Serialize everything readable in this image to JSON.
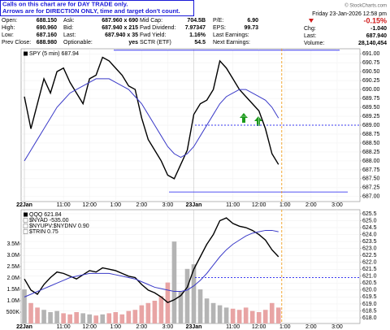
{
  "notice": [
    "Calls on this chart are for DAY TRADE only.",
    "Arrows are for DIRECTION ONLY, time and target don't count."
  ],
  "watermark": "© StockCharts.com",
  "quote": {
    "columns": [
      [
        [
          "Open:",
          "688.150"
        ],
        [
          "High:",
          "690.960"
        ],
        [
          "Low:",
          "687.160"
        ],
        [
          "Prev Close:",
          "688.980"
        ]
      ],
      [
        [
          "Ask:",
          "687.960 x 690"
        ],
        [
          "Bid:",
          "687.940 x 215"
        ],
        [
          "Last:",
          "687.940 x 35"
        ],
        [
          "Optionable:",
          "yes"
        ]
      ],
      [
        [
          "Mid Cap:",
          "704.5B"
        ],
        [
          "Fwd Dividend:",
          "7.97347"
        ],
        [
          "Fwd Yield:",
          "1.16%"
        ],
        [
          "SCTR (ETF)",
          "54.5"
        ]
      ],
      [
        [
          "P/E:",
          "6.90"
        ],
        [
          "EPS:",
          "99.73"
        ],
        [
          "Last Earnings:"
        ],
        [
          "Next Earnings:"
        ]
      ]
    ]
  },
  "status": {
    "date": "Friday  23-Jan-2026 12:58 pm",
    "change_pct": "-0.15%",
    "rows": [
      [
        "Chg:",
        "-1.040"
      ],
      [
        "Last:",
        "687.940"
      ],
      [
        "Volume:",
        "28,140,454"
      ]
    ]
  },
  "chart_data": [
    {
      "type": "line",
      "categories": [
        "22Jan",
        null,
        null,
        null,
        null,
        null,
        "11:00",
        null,
        null,
        null,
        "12:00",
        null,
        null,
        null,
        "1:00",
        null,
        null,
        null,
        "2:00",
        null,
        null,
        null,
        "3:00",
        null,
        null,
        null,
        "23Jan",
        null,
        null,
        null,
        null,
        null,
        "11:00",
        null,
        null,
        null,
        "12:00",
        null,
        null,
        null,
        "1:00",
        null,
        null,
        null,
        "2:00",
        null,
        null,
        null,
        "3:00",
        null,
        null,
        null
      ],
      "series": [
        {
          "name": "SPY (5 min) 687.94",
          "color": "#000000",
          "values": [
            689.8,
            688.9,
            689.6,
            690.3,
            689.9,
            690.5,
            690.6,
            690.2,
            689.9,
            689.6,
            690.3,
            690.4,
            690.9,
            690.8,
            690.6,
            690.4,
            690.1,
            690.0,
            689.2,
            688.6,
            688.3,
            688.0,
            687.6,
            687.5,
            687.9,
            688.3,
            689.3,
            689.6,
            689.7,
            690.0,
            690.8,
            690.6,
            690.3,
            690.0,
            689.8,
            689.6,
            689.4,
            688.9,
            688.2,
            687.9,
            null,
            null,
            null,
            null,
            null,
            null,
            null,
            null,
            null,
            null,
            null,
            null
          ]
        },
        {
          "color": "#3a3ac8",
          "values": [
            688.0,
            688.3,
            688.6,
            688.9,
            689.2,
            689.5,
            689.7,
            689.9,
            690.0,
            690.1,
            690.2,
            690.3,
            690.3,
            690.3,
            690.2,
            690.1,
            690.0,
            689.8,
            689.6,
            689.3,
            689.0,
            688.7,
            688.4,
            688.2,
            688.1,
            688.2,
            688.4,
            688.7,
            689.0,
            689.3,
            689.6,
            689.8,
            689.9,
            690.0,
            690.0,
            689.9,
            689.8,
            689.7,
            689.5,
            689.2,
            null,
            null,
            null,
            null,
            null,
            null,
            null,
            null,
            null,
            null,
            null,
            null
          ]
        }
      ],
      "ylim": [
        686.86,
        691.14
      ],
      "yticks": [
        {
          "value": 687,
          "label": "687.00"
        },
        {
          "value": 687.25,
          "label": "687.25"
        },
        {
          "value": 687.5,
          "label": "687.50"
        },
        {
          "value": 687.75,
          "label": "687.75"
        },
        {
          "value": 688,
          "label": "688.00"
        },
        {
          "value": 688.25,
          "label": "688.25"
        },
        {
          "value": 688.5,
          "label": "688.50"
        },
        {
          "value": 688.75,
          "label": "688.75"
        },
        {
          "value": 689,
          "label": "689.00"
        },
        {
          "value": 689.25,
          "label": "689.25"
        },
        {
          "value": 689.5,
          "label": "689.50"
        },
        {
          "value": 689.75,
          "label": "689.75"
        },
        {
          "value": 690,
          "label": "690.00"
        },
        {
          "value": 690.25,
          "label": "690.25"
        },
        {
          "value": 690.5,
          "label": "690.50"
        },
        {
          "value": 690.75,
          "label": "690.75"
        },
        {
          "value": 691,
          "label": "691.00"
        }
      ],
      "hlines": [
        {
          "value": 691.1,
          "color": "#3a3af0",
          "dashed": false
        },
        {
          "value": 687.13,
          "color": "#3a3af0",
          "dashed": false
        },
        {
          "value": 689.0,
          "color": "#3a3af0",
          "dashed": true
        }
      ],
      "grid": true
    },
    {
      "type": "line",
      "categories": [
        "22Jan",
        null,
        null,
        null,
        null,
        null,
        "11:00",
        null,
        null,
        null,
        "12:00",
        null,
        null,
        null,
        "1:00",
        null,
        null,
        null,
        "2:00",
        null,
        null,
        null,
        "3:00",
        null,
        null,
        null,
        "23Jan",
        null,
        null,
        null,
        null,
        null,
        "11:00",
        null,
        null,
        null,
        "12:00",
        null,
        null,
        null,
        "1:00",
        null,
        null,
        null,
        "2:00",
        null,
        null,
        null,
        "3:00",
        null,
        null,
        null
      ],
      "series": [
        {
          "name": "QQQ 621.84",
          "color": "#000000",
          "values": [
            620.8,
            620.0,
            619.7,
            620.4,
            620.9,
            621.3,
            621.2,
            621.0,
            620.8,
            621.1,
            621.4,
            621.3,
            621.6,
            621.5,
            621.4,
            621.2,
            621.0,
            620.9,
            620.4,
            620.0,
            619.8,
            619.5,
            619.1,
            619.3,
            619.6,
            620.2,
            621.5,
            622.4,
            623.3,
            624.0,
            625.0,
            625.2,
            624.8,
            624.6,
            624.5,
            624.3,
            624.0,
            623.6,
            622.9,
            622.4,
            null,
            null,
            null,
            null,
            null,
            null,
            null,
            null,
            null,
            null,
            null,
            null
          ]
        },
        {
          "color": "#3a3ac8",
          "values": [
            619.5,
            619.7,
            619.9,
            620.1,
            620.3,
            620.5,
            620.7,
            620.9,
            621.0,
            621.1,
            621.2,
            621.2,
            621.2,
            621.2,
            621.1,
            621.0,
            620.9,
            620.8,
            620.6,
            620.4,
            620.2,
            620.1,
            620.0,
            619.9,
            619.9,
            620.0,
            620.3,
            620.7,
            621.2,
            621.8,
            622.4,
            622.9,
            623.3,
            623.6,
            623.9,
            624.1,
            624.2,
            624.3,
            624.3,
            624.2,
            null,
            null,
            null,
            null,
            null,
            null,
            null,
            null,
            null,
            null,
            null,
            null
          ]
        },
        {
          "type": "bar",
          "axis": "y2",
          "up_color": "#b4b4b4",
          "down_color": "#e8a4a4",
          "values": [
            1500000,
            900000,
            700000,
            600000,
            500000,
            550000,
            450000,
            400000,
            500000,
            450000,
            400000,
            350000,
            400000,
            450000,
            500000,
            400000,
            550000,
            600000,
            800000,
            900000,
            1000000,
            1200000,
            1800000,
            3600000,
            1400000,
            2400000,
            2600000,
            1500000,
            1100000,
            900000,
            800000,
            700000,
            650000,
            600000,
            700000,
            550000,
            500000,
            600000,
            900000,
            700000,
            null,
            null,
            null,
            null,
            null,
            null,
            null,
            null,
            null,
            null,
            null,
            null
          ]
        }
      ],
      "indicators": [
        "$NYAD -535.00",
        "$NYUPV:$NYDNV 0.90",
        "$TRIN 0.75"
      ],
      "ylim": [
        617.59,
        625.79
      ],
      "yticks": [
        {
          "value": 618,
          "label": "618.0"
        },
        {
          "value": 618.5,
          "label": "618.5"
        },
        {
          "value": 619,
          "label": "619.0"
        },
        {
          "value": 619.5,
          "label": "619.5"
        },
        {
          "value": 620,
          "label": "620.0"
        },
        {
          "value": 620.5,
          "label": "620.5"
        },
        {
          "value": 621,
          "label": "621.0"
        },
        {
          "value": 621.5,
          "label": "621.5"
        },
        {
          "value": 622,
          "label": "622.0"
        },
        {
          "value": 622.5,
          "label": "622.5"
        },
        {
          "value": 623,
          "label": "623.0"
        },
        {
          "value": 623.5,
          "label": "623.5"
        },
        {
          "value": 624,
          "label": "624.0"
        },
        {
          "value": 624.5,
          "label": "624.5"
        },
        {
          "value": 625,
          "label": "625.0"
        },
        {
          "value": 625.5,
          "label": "625.5"
        }
      ],
      "y2lim": [
        0,
        5000000
      ],
      "y2ticks": [
        {
          "value": 500000,
          "label": "500K"
        },
        {
          "value": 1000000,
          "label": "1.0M"
        },
        {
          "value": 1500000,
          "label": "1.5M"
        },
        {
          "value": 2000000,
          "label": "2.0M"
        },
        {
          "value": 2500000,
          "label": "2.5M"
        },
        {
          "value": 3000000,
          "label": "3.0M"
        },
        {
          "value": 3500000,
          "label": "3.5M"
        }
      ],
      "hlines": [
        {
          "value": 620.9,
          "color": "#3a3af0",
          "dashed": true
        }
      ],
      "grid": true
    }
  ]
}
